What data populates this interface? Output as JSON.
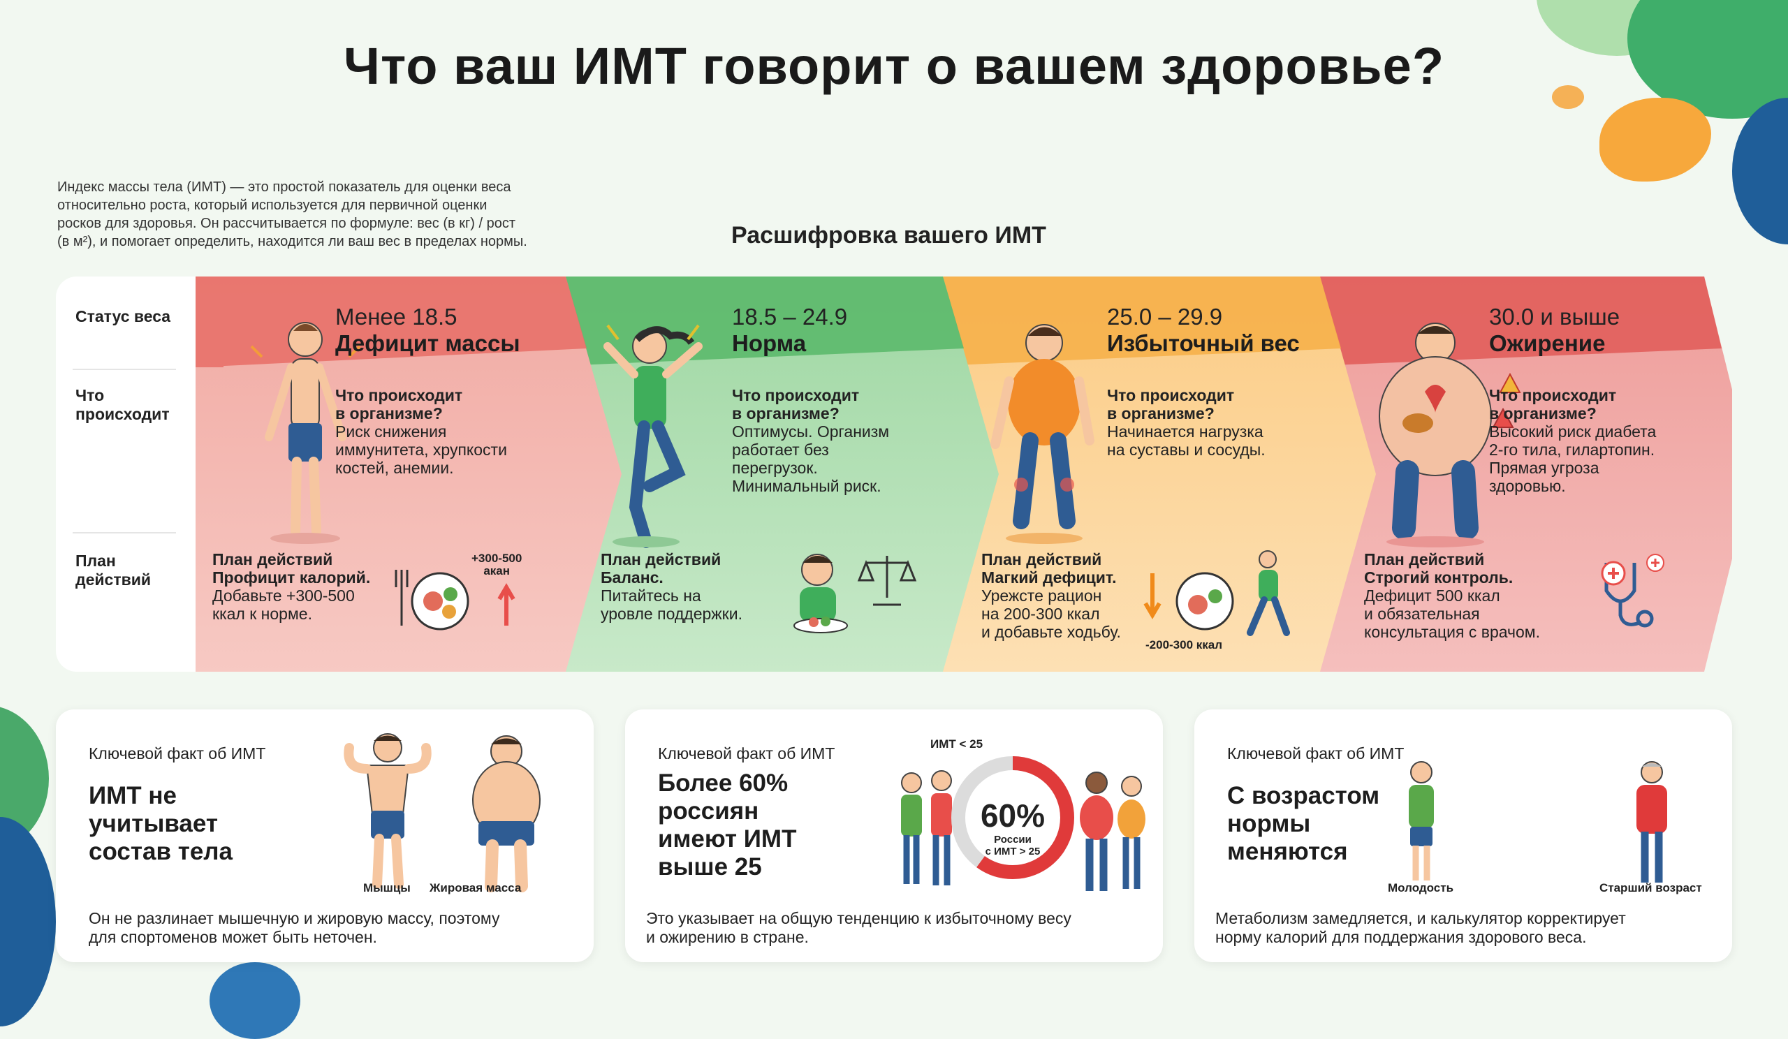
{
  "title": "Что ваш ИМТ говорит о вашем здоровье?",
  "intro": [
    "Индекс массы тела (ИМТ) — это простой показатель для оценки веса",
    "относительно роста, который используется для первичной оценки",
    "росков для здоровья. Он рассчитывается по формуле: вес (в кг) / рост",
    "(в м²), и помогает определить, находится ли ваш вес в пределах нормы."
  ],
  "section_title": "Расшифровка вашего ИМТ",
  "row_labels": {
    "status": "Статус веса",
    "happens": [
      "Что",
      "происходит"
    ],
    "plan": [
      "План",
      "действий"
    ]
  },
  "categories": [
    {
      "range": "Менее 18.5",
      "name": "Дефицит массы",
      "question": [
        "Что происходит",
        "в организме?"
      ],
      "effect": [
        "Риск снижения",
        "иммунитета, хрупкости",
        "костей, анемии."
      ],
      "plan_title": "План действий",
      "plan_bold": "Профицит калорий.",
      "plan_text": [
        "Добавьте +300-500",
        "ккал к норме."
      ],
      "badge": [
        "+300-500",
        "акан"
      ],
      "color": "#e25b5b"
    },
    {
      "range": "18.5 – 24.9",
      "name": "Норма",
      "question": [
        "Что происходит",
        "в организме?"
      ],
      "effect": [
        "Оптимусы. Организм",
        "работает без",
        "перегрузок.",
        "Минимальный риск."
      ],
      "plan_title": "План действий",
      "plan_bold": "Баланс.",
      "plan_text": [
        "Питайтесь на",
        "уровле поддержки."
      ],
      "color": "#4fb063"
    },
    {
      "range": "25.0 – 29.9",
      "name": "Избыточный вес",
      "question": [
        "Что происходит",
        "в организме?"
      ],
      "effect": [
        "Начинается нагрузка",
        "на суставы и сосуды."
      ],
      "plan_title": "План действий",
      "plan_bold": "Магкий дефицит.",
      "plan_text": [
        "Урежсте рацион",
        "на 200-300 ккал",
        "и добавьте ходьбу."
      ],
      "badge": [
        "-200-300 ккал"
      ],
      "color": "#f2a23a"
    },
    {
      "range": "30.0 и выше",
      "name": "Ожирение",
      "question": [
        "Что происходит",
        "в организме?"
      ],
      "effect": [
        "Высокий риск диабета",
        "2-го тила, гилартопин.",
        "Прямая угроза",
        "здоровью."
      ],
      "plan_title": "План действий",
      "plan_bold": "Строгий контроль.",
      "plan_text": [
        "Дефицит 500 ккал",
        "и обязательная",
        "консультация с врачом."
      ],
      "color": "#de4b4b"
    }
  ],
  "cards": [
    {
      "label": "Ключевой факт об ИМТ",
      "headline": [
        "ИМТ не",
        "учитывает",
        "состав тела"
      ],
      "captions": [
        "Мышцы",
        "Жировая масса"
      ],
      "footer": [
        "Он не разлинает мышечную и жировую массу, поэтому",
        "для спортоменов может быть неточен."
      ]
    },
    {
      "label": "Ключевой факт об ИМТ",
      "headline": [
        "Более 60%",
        "россиян",
        "имеют ИМТ",
        "выше 25"
      ],
      "donut_top": "ИМТ < 25",
      "donut_value": "60%",
      "donut_caption": [
        "России",
        "с ИМТ > 25"
      ],
      "donut_fraction": 0.6,
      "footer": [
        "Это указывает на общую тенденцию к избыточному весу",
        "и ожирению в стране."
      ]
    },
    {
      "label": "Ключевой факт об ИМТ",
      "headline": [
        "С возрастом",
        "нормы",
        "меняются"
      ],
      "captions": [
        "Молодость",
        "Старший возраст"
      ],
      "footer": [
        "Метаболизм замедляется, и калькулятор корректирует",
        "норму калорий для поддержания здорового веса."
      ]
    }
  ]
}
